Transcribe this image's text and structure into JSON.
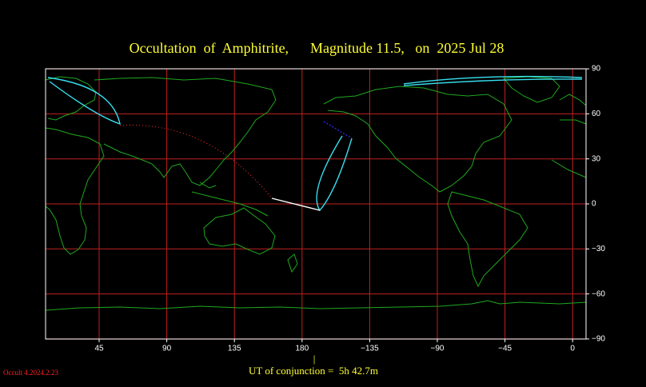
{
  "title": "Occultation  of  Amphitrite,      Magnitude 11.5,   on  2025 Jul 28",
  "lon_ticks": [
    45,
    90,
    135,
    180,
    {
      "value": -135,
      "label": "−135"
    },
    {
      "value": -90,
      "label": "−90"
    },
    {
      "value": -45,
      "label": "−45"
    },
    0
  ],
  "lat_ticks": [
    90,
    60,
    30,
    0,
    {
      "value": -30,
      "label": "−30"
    },
    {
      "value": -60,
      "label": "−60"
    },
    {
      "value": -90,
      "label": "−90"
    }
  ],
  "conjunction_marker": "|",
  "conjunction": "UT of conjunction =  5h 42.7m",
  "version": "Occult 4.2024.2.23"
}
